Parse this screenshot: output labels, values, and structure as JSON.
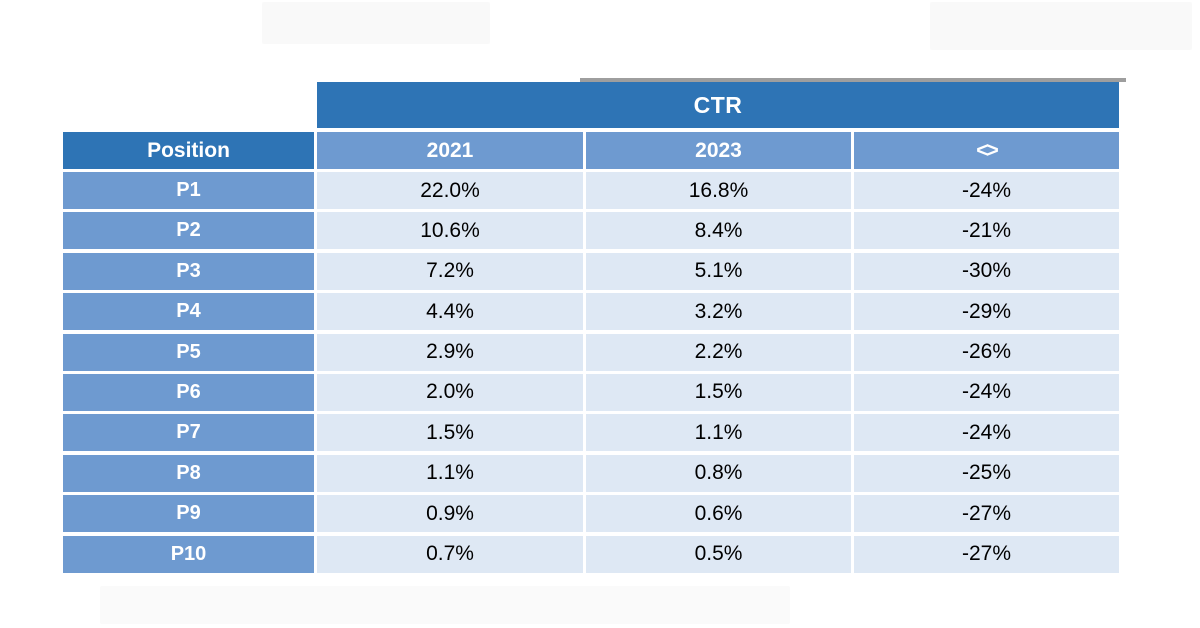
{
  "colors": {
    "header_dark_blue": "#2e74b5",
    "row_medium_blue": "#6e9ad0",
    "cell_light_blue": "#dee8f4",
    "top_bar_gray": "#9e9e9e",
    "value_text": "#000000",
    "header_text": "#ffffff"
  },
  "chart_data": {
    "type": "table",
    "title": "CTR",
    "columns": [
      "Position",
      "2021",
      "2023",
      "<>"
    ],
    "rows": [
      [
        "P1",
        "22.0%",
        "16.8%",
        "-24%"
      ],
      [
        "P2",
        "10.6%",
        "8.4%",
        "-21%"
      ],
      [
        "P3",
        "7.2%",
        "5.1%",
        "-30%"
      ],
      [
        "P4",
        "4.4%",
        "3.2%",
        "-29%"
      ],
      [
        "P5",
        "2.9%",
        "2.2%",
        "-26%"
      ],
      [
        "P6",
        "2.0%",
        "1.5%",
        "-24%"
      ],
      [
        "P7",
        "1.5%",
        "1.1%",
        "-24%"
      ],
      [
        "P8",
        "1.1%",
        "0.8%",
        "-25%"
      ],
      [
        "P9",
        "0.9%",
        "0.6%",
        "-27%"
      ],
      [
        "P10",
        "0.7%",
        "0.5%",
        "-27%"
      ]
    ]
  }
}
